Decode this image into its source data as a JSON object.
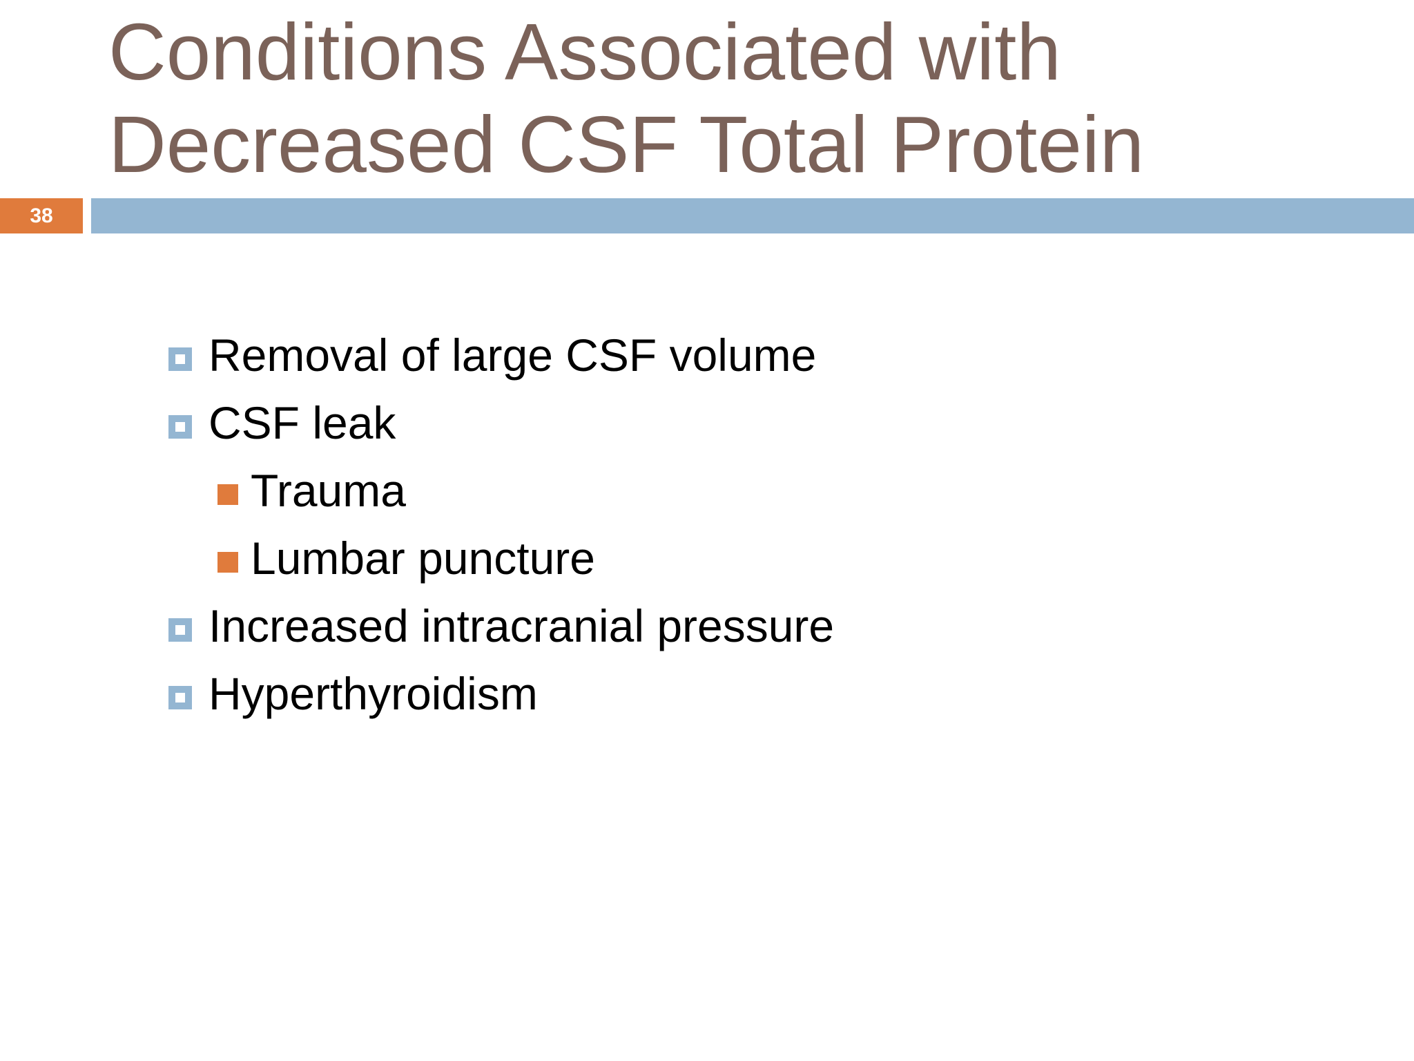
{
  "slide": {
    "title_lines": [
      "Conditions Associated with",
      "Decreased CSF Total Protein"
    ],
    "slide_number": "38"
  },
  "bullets": [
    {
      "level": 1,
      "text": "Removal of large CSF volume"
    },
    {
      "level": 1,
      "text": "CSF leak"
    },
    {
      "level": 2,
      "text": "Trauma"
    },
    {
      "level": 2,
      "text": "Lumbar puncture"
    },
    {
      "level": 1,
      "text": "Increased intracranial pressure"
    },
    {
      "level": 1,
      "text": "Hyperthyroidism"
    }
  ],
  "colors": {
    "title": "#7b6259",
    "accent_orange": "#e07b3c",
    "accent_blue": "#94b6d2",
    "body_text": "#000000"
  },
  "icons": {
    "level1_bullet": "hollow-square-bullet-icon",
    "level2_bullet": "filled-square-bullet-icon"
  }
}
